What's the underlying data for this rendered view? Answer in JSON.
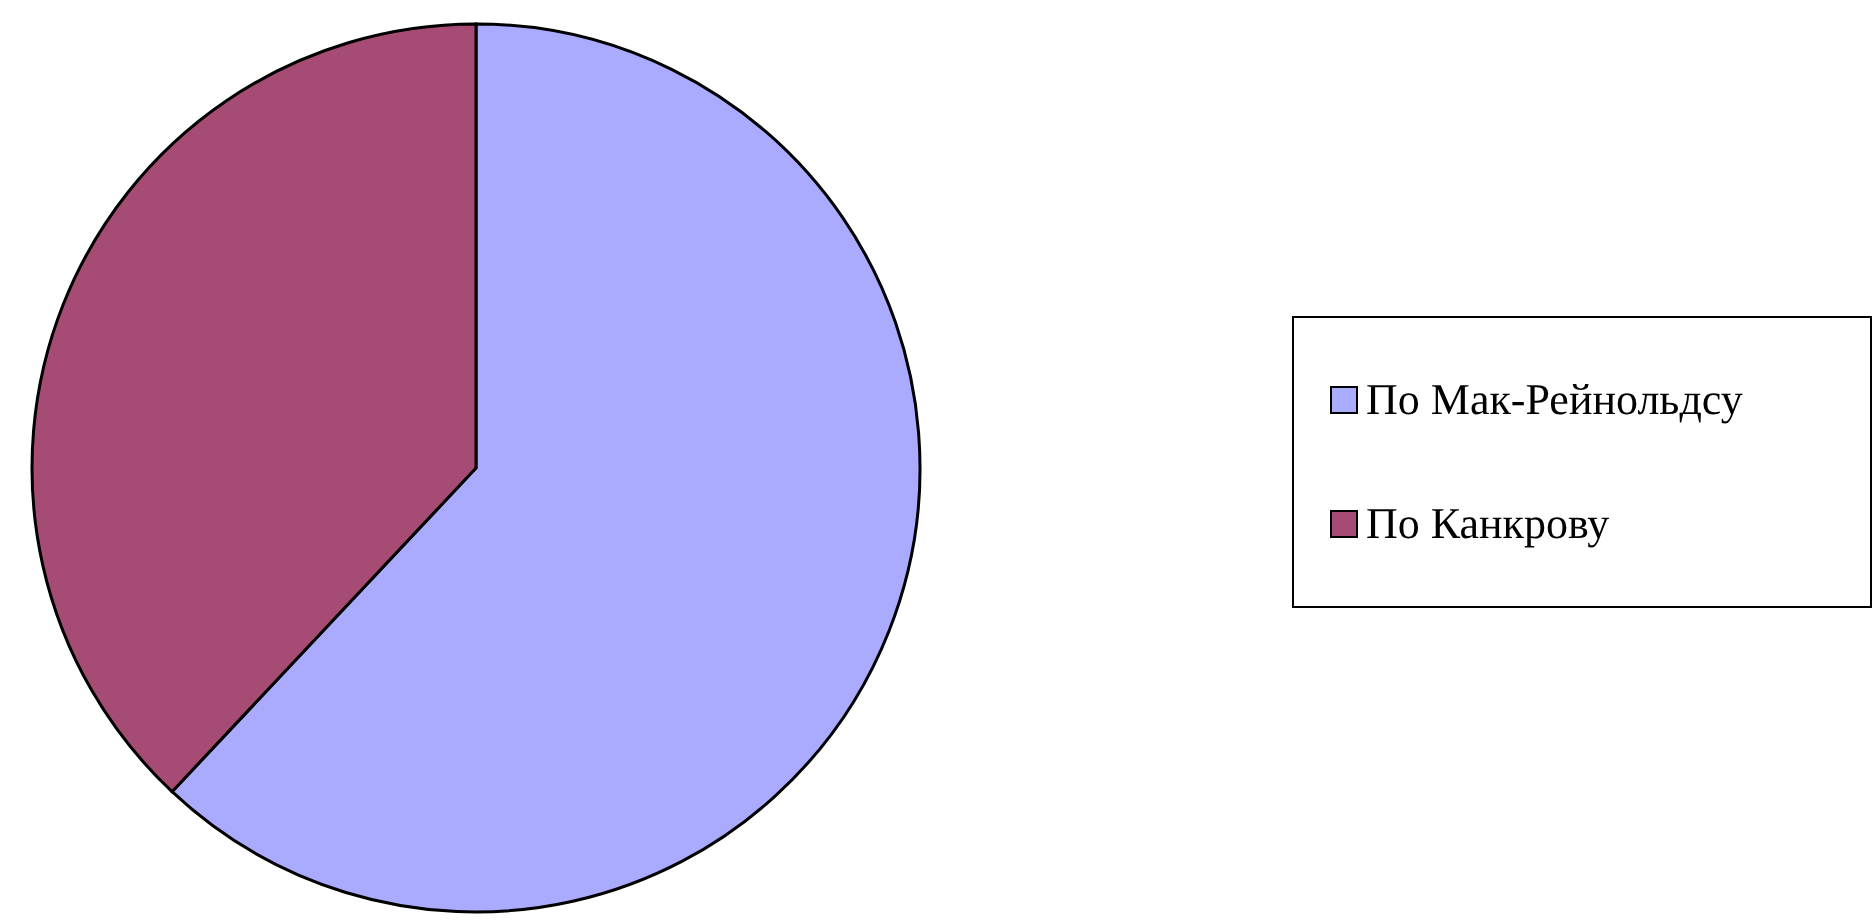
{
  "chart_data": {
    "type": "pie",
    "categories": [
      "По Мак-Рейнольдсу",
      "По Канкрову"
    ],
    "values": [
      62,
      38
    ],
    "colors": [
      "#aaaaff",
      "#a64b74"
    ],
    "legend": "right"
  }
}
